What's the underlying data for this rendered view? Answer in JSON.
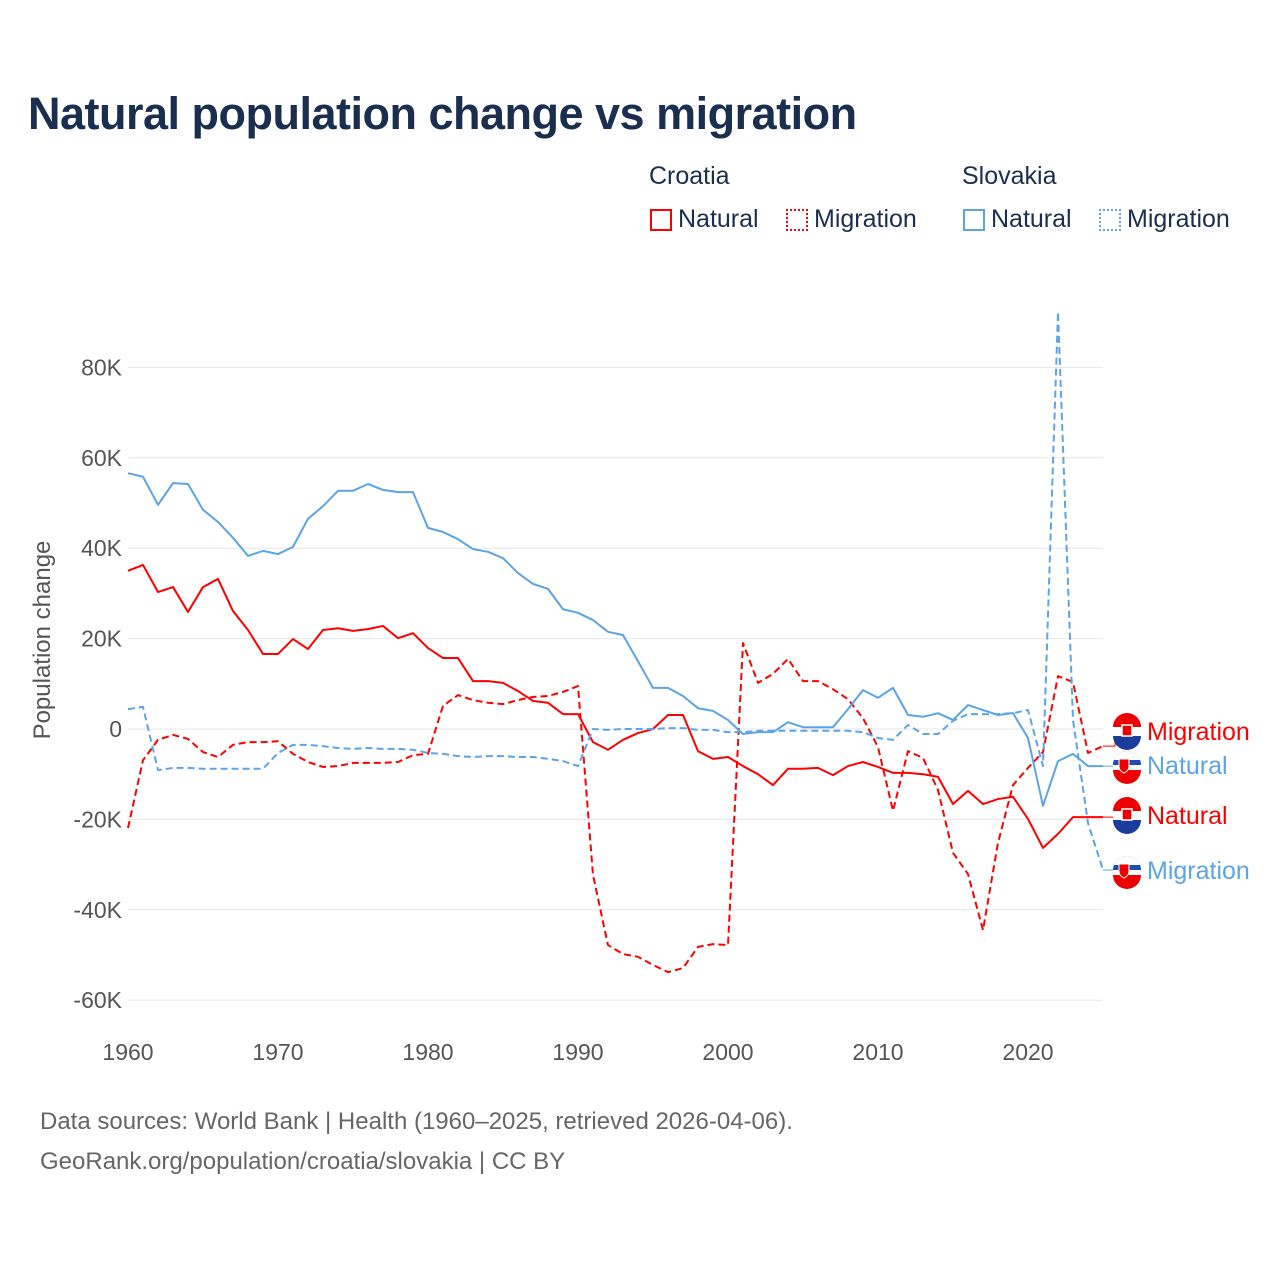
{
  "title": "Natural population change vs migration",
  "legend": {
    "groups": [
      {
        "name": "Croatia",
        "items": [
          "Natural",
          "Migration"
        ]
      },
      {
        "name": "Slovakia",
        "items": [
          "Natural",
          "Migration"
        ]
      }
    ]
  },
  "colors": {
    "croatia": "#ff0000",
    "slovakia": "#5ba4e8",
    "title": "#1a2e4f",
    "grid": "#e6e6e6"
  },
  "footer": {
    "line1": "Data sources: World Bank | Health (1960–2025, retrieved 2026-04-06).",
    "line2": "GeoRank.org/population/croatia/slovakia | CC BY"
  },
  "chart_data": {
    "type": "line",
    "title": "Natural population change vs migration",
    "xlabel": "",
    "ylabel": "Population change",
    "xlim": [
      1960,
      2025
    ],
    "ylim": [
      -60000,
      80000
    ],
    "x_ticks": [
      1960,
      1970,
      1980,
      1990,
      2000,
      2010,
      2020
    ],
    "y_ticks": [
      {
        "v": 80000,
        "label": "80K"
      },
      {
        "v": 60000,
        "label": "60K"
      },
      {
        "v": 40000,
        "label": "40K"
      },
      {
        "v": 20000,
        "label": "20K"
      },
      {
        "v": 0,
        "label": "0"
      },
      {
        "v": -20000,
        "label": "-20K"
      },
      {
        "v": -40000,
        "label": "-40K"
      },
      {
        "v": -60000,
        "label": "-60K"
      }
    ],
    "x_start": 1960,
    "series": [
      {
        "name": "Croatia Natural",
        "country": "croatia",
        "kind": "Natural",
        "dash": false,
        "end_label": "Natural",
        "values": [
          35,
          36.3,
          30.3,
          31.4,
          25.9,
          31.4,
          33.2,
          26.1,
          21.9,
          16.6,
          16.6,
          19.9,
          17.7,
          21.9,
          22.3,
          21.7,
          22.1,
          22.8,
          20.1,
          21.2,
          17.9,
          15.7,
          15.7,
          10.6,
          10.6,
          10.2,
          8.4,
          6.2,
          5.8,
          3.3,
          3.3,
          -2.9,
          -4.6,
          -2.4,
          -0.9,
          0,
          3.1,
          3.1,
          -4.9,
          -6.6,
          -6.2,
          -8.2,
          -10,
          -12.4,
          -8.8,
          -8.8,
          -8.6,
          -10.2,
          -8.2,
          -7.3,
          -8.4,
          -9.7,
          -9.7,
          -10,
          -10.6,
          -16.6,
          -13.7,
          -16.6,
          -15.5,
          -15,
          -19.9,
          -26.3,
          -23.2,
          -19.5,
          -19.5,
          -19.5
        ]
      },
      {
        "name": "Croatia Migration",
        "country": "croatia",
        "kind": "Migration",
        "dash": true,
        "end_label": "Migration",
        "values": [
          -21.9,
          -6.9,
          -2.4,
          -1.3,
          -2.2,
          -5.1,
          -6.2,
          -3.5,
          -2.9,
          -2.9,
          -2.7,
          -5.5,
          -7.3,
          -8.4,
          -8.2,
          -7.5,
          -7.5,
          -7.5,
          -7.3,
          -5.8,
          -5.5,
          5.1,
          7.5,
          6.4,
          5.8,
          5.5,
          6.4,
          7.1,
          7.3,
          8.2,
          9.5,
          -32.3,
          -47.8,
          -49.8,
          -50.4,
          -52.2,
          -53.8,
          -52.9,
          -48.2,
          -47.6,
          -47.8,
          19,
          10.2,
          12.2,
          15.5,
          10.6,
          10.6,
          8.8,
          6.6,
          2.4,
          -4,
          -18.1,
          -4.9,
          -6.4,
          -13.5,
          -27.4,
          -32.1,
          -44.5,
          -25.2,
          -12.4,
          -8.6,
          -5.1,
          11.7,
          10.4,
          -5.3,
          -3.8
        ]
      },
      {
        "name": "Slovakia Natural",
        "country": "slovakia",
        "kind": "Natural",
        "dash": false,
        "end_label": "Natural",
        "values": [
          56.6,
          55.8,
          49.6,
          54.4,
          54.2,
          48.5,
          45.8,
          42.3,
          38.3,
          39.4,
          38.7,
          40.3,
          46.5,
          49.3,
          52.7,
          52.7,
          54.2,
          52.9,
          52.4,
          52.4,
          44.5,
          43.6,
          42,
          39.8,
          39.2,
          37.8,
          34.5,
          32.1,
          31,
          26.5,
          25.7,
          24.1,
          21.5,
          20.8,
          15,
          9.1,
          9.1,
          7.3,
          4.6,
          4,
          2,
          -1.1,
          -0.7,
          -0.7,
          1.5,
          0.4,
          0.4,
          0.4,
          4.4,
          8.6,
          6.9,
          9.1,
          3.1,
          2.7,
          3.5,
          2,
          5.3,
          4.2,
          3.1,
          3.5,
          -2,
          -17,
          -7.1,
          -5.5,
          -8.2,
          -8.2
        ]
      },
      {
        "name": "Slovakia Migration",
        "country": "slovakia",
        "kind": "Migration",
        "dash": true,
        "end_label": "Migration",
        "values": [
          4.4,
          4.9,
          -9.1,
          -8.6,
          -8.6,
          -8.8,
          -8.8,
          -8.8,
          -8.8,
          -8.8,
          -5.3,
          -3.5,
          -3.5,
          -3.8,
          -4.2,
          -4.4,
          -4.2,
          -4.4,
          -4.4,
          -4.6,
          -5.3,
          -5.5,
          -6,
          -6.2,
          -6,
          -6,
          -6.2,
          -6.2,
          -6.6,
          -7.1,
          -8.2,
          0,
          -0.2,
          0,
          0,
          0,
          0.2,
          0.2,
          -0.2,
          -0.2,
          -0.7,
          -0.7,
          -0.4,
          -0.4,
          -0.4,
          -0.4,
          -0.4,
          -0.4,
          -0.4,
          -0.7,
          -2,
          -2.4,
          0.9,
          -1.1,
          -1.1,
          1.8,
          3.3,
          3.3,
          3.3,
          3.5,
          4.2,
          -8.2,
          92.3,
          2,
          -20.8,
          -31.2
        ]
      }
    ],
    "value_unit": "thousands",
    "legend_position": "top-right"
  }
}
